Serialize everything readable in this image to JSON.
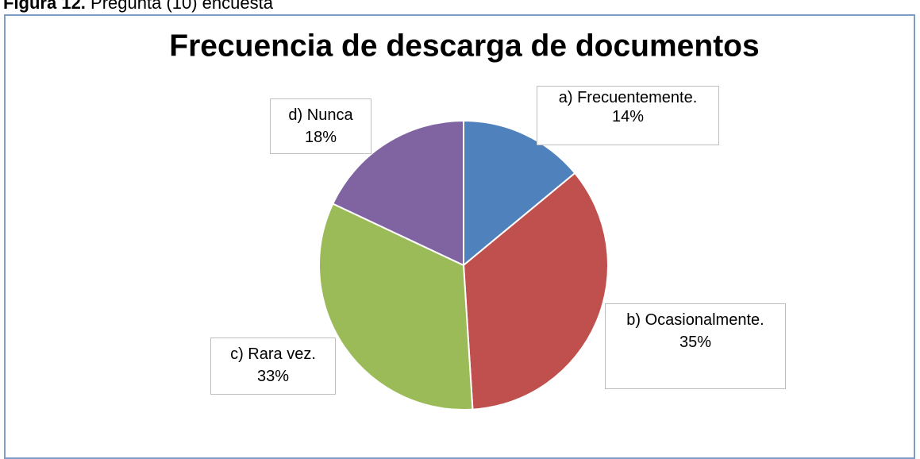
{
  "caption_label": "Figura 12.",
  "caption": "Pregunta (10) encuesta",
  "chart_data": {
    "type": "pie",
    "title": "Frecuencia de descarga de documentos",
    "categories": [
      "a) Frecuentemente.",
      "b) Ocasionalmente.",
      "c) Rara vez.",
      "d) Nunca"
    ],
    "values": [
      14,
      35,
      33,
      18
    ],
    "value_labels": [
      "14%",
      "35%",
      "33%",
      "18%"
    ],
    "colors": [
      "#4f81bd",
      "#c0504d",
      "#9bbb59",
      "#8064a2"
    ]
  }
}
